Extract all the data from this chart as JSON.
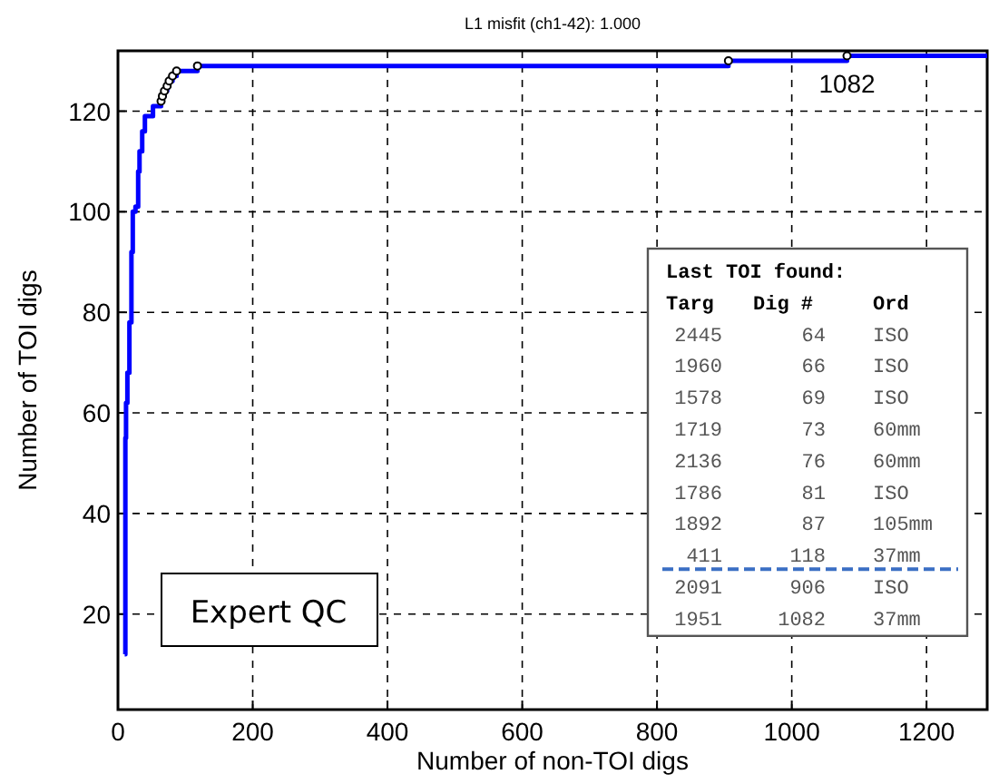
{
  "chart_data": {
    "type": "line",
    "title": "L1 misfit (ch1-42): 1.000",
    "xlabel": "Number of non-TOI digs",
    "ylabel": "Number of TOI digs",
    "xlim": [
      0,
      1290
    ],
    "ylim": [
      1,
      132
    ],
    "xticks": [
      0,
      200,
      400,
      600,
      800,
      1000,
      1200
    ],
    "yticks": [
      20,
      40,
      60,
      80,
      100,
      120
    ],
    "grid": true,
    "series": [
      {
        "color": "#0000ff",
        "x": [
          10,
          11,
          12,
          14,
          17,
          20,
          22,
          26,
          30,
          32,
          36,
          40,
          46,
          52,
          64,
          66,
          69,
          73,
          76,
          81,
          87,
          118,
          906,
          1082,
          1290
        ],
        "values": [
          12,
          55,
          62,
          68,
          78,
          92,
          100,
          101,
          108,
          112,
          116,
          119,
          119,
          121,
          122,
          123,
          124,
          125,
          126,
          127,
          128,
          129,
          130,
          131,
          131
        ]
      },
      {
        "type": "scatter",
        "color": "#000000",
        "marker": "circle",
        "x": [
          64,
          66,
          69,
          73,
          76,
          81,
          87,
          118,
          906,
          1082
        ],
        "values": [
          122,
          123,
          124,
          125,
          126,
          127,
          128,
          129,
          130,
          131
        ]
      }
    ],
    "annotations": [
      "Expert QC",
      {
        "text": "1082",
        "x": 1082,
        "y": 131
      },
      "Last TOI found:",
      "Targ",
      "Dig #",
      "Ord",
      "2445",
      "64",
      "ISO",
      "1960",
      "66",
      "ISO",
      "1578",
      "69",
      "ISO",
      "1719",
      "73",
      "60mm",
      "2136",
      "76",
      "60mm",
      "1786",
      "81",
      "ISO",
      "1892",
      "87",
      "105mm",
      "411",
      "118",
      "37mm",
      "2091",
      "906",
      "ISO",
      "1951",
      "1082",
      "37mm"
    ]
  }
}
